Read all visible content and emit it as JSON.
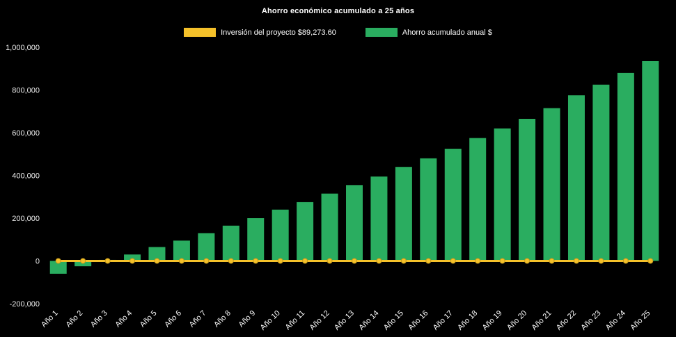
{
  "title": "Ahorro económico acumulado a 25 años",
  "legend": {
    "items": [
      {
        "label": "Inversión del proyecto $89,273.60",
        "color": "#F5C12A",
        "series_type": "line"
      },
      {
        "label": "Ahorro acumulado anual $",
        "color": "#2AAD60",
        "series_type": "bar"
      }
    ]
  },
  "chart_data": {
    "type": "bar",
    "title": "Ahorro económico acumulado a 25 años",
    "background": "#000000",
    "grid": false,
    "legend_position": "top",
    "xlabel": "",
    "ylabel": "",
    "ylim": [
      -200000,
      1000000
    ],
    "yticks": [
      -200000,
      0,
      200000,
      400000,
      600000,
      800000,
      1000000
    ],
    "categories": [
      "Año 1",
      "Año 2",
      "Año 3",
      "Año 4",
      "Año 5",
      "Año 6",
      "Año 7",
      "Año 8",
      "Año 9",
      "Año 10",
      "Año 11",
      "Año 12",
      "Año 13",
      "Año 14",
      "Año 15",
      "Año 16",
      "Año 17",
      "Año 18",
      "Año 19",
      "Año 20",
      "Año 21",
      "Año 22",
      "Año 23",
      "Año 24",
      "Año 25"
    ],
    "series": [
      {
        "name": "Ahorro acumulado anual $",
        "type": "bar",
        "color": "#2AAD60",
        "values": [
          -60000,
          -25000,
          5000,
          30000,
          65000,
          95000,
          130000,
          165000,
          200000,
          240000,
          275000,
          315000,
          355000,
          395000,
          440000,
          480000,
          525000,
          575000,
          620000,
          665000,
          715000,
          775000,
          825000,
          880000,
          935000
        ]
      },
      {
        "name": "Inversión del proyecto $89,273.60",
        "type": "line",
        "color": "#F5C12A",
        "marker": "circle",
        "values": [
          0,
          0,
          0,
          0,
          0,
          0,
          0,
          0,
          0,
          0,
          0,
          0,
          0,
          0,
          0,
          0,
          0,
          0,
          0,
          0,
          0,
          0,
          0,
          0,
          0
        ]
      }
    ]
  }
}
